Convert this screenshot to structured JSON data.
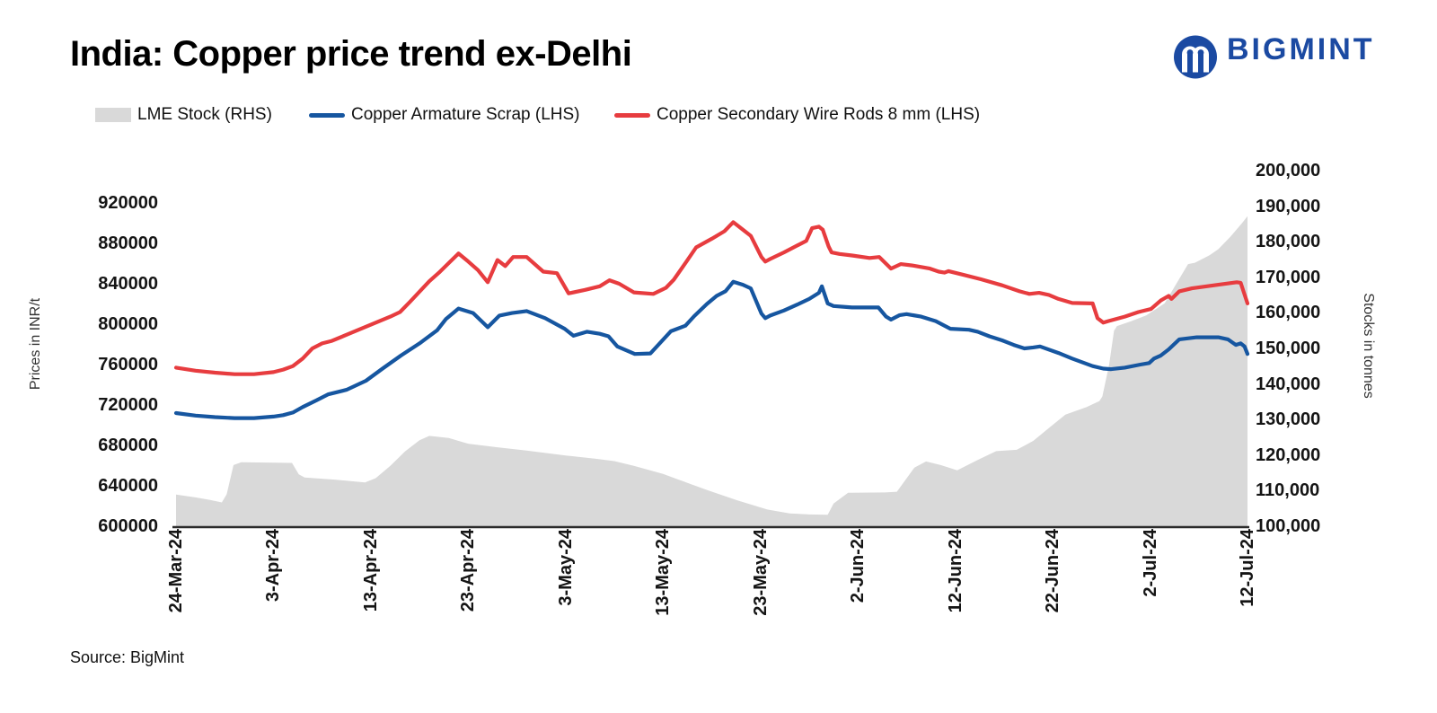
{
  "title": "India: Copper price trend ex-Delhi",
  "logo": {
    "text": "BIGMINT",
    "color": "#1b4aa2"
  },
  "source": "Source: BigMint",
  "colors": {
    "red": "#e73c3f",
    "blue": "#1656a0",
    "gray_area": "#d9d9d9",
    "axis_line": "#2b2b2b"
  },
  "legend": [
    {
      "label": "LME Stock (RHS)",
      "swatch": "area",
      "color": "#d9d9d9"
    },
    {
      "label": "Copper Armature Scrap (LHS)",
      "swatch": "line",
      "color": "#1656a0"
    },
    {
      "label": "Copper Secondary Wire Rods 8 mm (LHS)",
      "swatch": "line",
      "color": "#e73c3f"
    }
  ],
  "chart_data": {
    "type": "line",
    "title": "India: Copper price trend ex-Delhi",
    "x_axis": {
      "unit": "date",
      "tick_labels": [
        "24-Mar-24",
        "3-Apr-24",
        "13-Apr-24",
        "23-Apr-24",
        "3-May-24",
        "13-May-24",
        "23-May-24",
        "2-Jun-24",
        "12-Jun-24",
        "22-Jun-24",
        "2-Jul-24",
        "12-Jul-24"
      ],
      "tick_days": [
        0,
        10,
        20,
        30,
        40,
        50,
        60,
        70,
        80,
        90,
        100,
        110
      ],
      "range_days": [
        0,
        110
      ]
    },
    "y_left": {
      "label": "Prices in INR/t",
      "min": 600000,
      "max": 920000,
      "step": 40000,
      "grid": false
    },
    "y_right": {
      "label": "Stocks in tonnes",
      "min": 100000,
      "max": 200000,
      "step": 10000,
      "grid": false
    },
    "legend_position": "top",
    "series": [
      {
        "name": "LME Stock (RHS)",
        "axis": "right",
        "style": "area",
        "color": "#d9d9d9",
        "points": [
          [
            0,
            108900
          ],
          [
            2,
            108100
          ],
          [
            3.5,
            107400
          ],
          [
            4.7,
            106700
          ],
          [
            5.2,
            109000
          ],
          [
            5.9,
            117200
          ],
          [
            6.7,
            118000
          ],
          [
            11.9,
            117800
          ],
          [
            12.6,
            114600
          ],
          [
            13.2,
            113700
          ],
          [
            16.3,
            113100
          ],
          [
            19.4,
            112300
          ],
          [
            20.5,
            113500
          ],
          [
            22,
            117000
          ],
          [
            23.5,
            121000
          ],
          [
            25,
            124200
          ],
          [
            26,
            125400
          ],
          [
            28,
            124800
          ],
          [
            30,
            123200
          ],
          [
            33,
            122200
          ],
          [
            36,
            121300
          ],
          [
            40,
            119900
          ],
          [
            43,
            119000
          ],
          [
            45,
            118300
          ],
          [
            47,
            117000
          ],
          [
            48,
            116200
          ],
          [
            50,
            114700
          ],
          [
            51.5,
            113200
          ],
          [
            54.5,
            110200
          ],
          [
            57.6,
            107300
          ],
          [
            60.7,
            104700
          ],
          [
            63,
            103600
          ],
          [
            65,
            103300
          ],
          [
            66.9,
            103200
          ],
          [
            67.5,
            106400
          ],
          [
            69,
            109400
          ],
          [
            72.8,
            109500
          ],
          [
            74,
            109700
          ],
          [
            75.8,
            116500
          ],
          [
            77,
            118200
          ],
          [
            78.5,
            117200
          ],
          [
            80.2,
            115700
          ],
          [
            82.2,
            118500
          ],
          [
            84.2,
            121100
          ],
          [
            86.3,
            121500
          ],
          [
            88,
            124000
          ],
          [
            89.7,
            127800
          ],
          [
            91.3,
            131400
          ],
          [
            93.5,
            133500
          ],
          [
            94.8,
            135200
          ],
          [
            95.1,
            136500
          ],
          [
            95.8,
            145500
          ],
          [
            96.3,
            155000
          ],
          [
            96.6,
            156300
          ],
          [
            98,
            157600
          ],
          [
            99.6,
            159300
          ],
          [
            101.5,
            162700
          ],
          [
            103.9,
            173700
          ],
          [
            104.6,
            174100
          ],
          [
            106.1,
            176200
          ],
          [
            107,
            177900
          ],
          [
            108.2,
            181300
          ],
          [
            109.4,
            185100
          ],
          [
            110,
            187200
          ]
        ]
      },
      {
        "name": "Copper Armature Scrap (LHS)",
        "axis": "left",
        "style": "line",
        "color": "#1656a0",
        "points": [
          [
            0,
            712000
          ],
          [
            2,
            709500
          ],
          [
            4,
            708000
          ],
          [
            6,
            707000
          ],
          [
            8,
            707000
          ],
          [
            10,
            708500
          ],
          [
            11,
            710000
          ],
          [
            12,
            712500
          ],
          [
            13,
            718000
          ],
          [
            14.4,
            724500
          ],
          [
            15.6,
            730500
          ],
          [
            17.5,
            735000
          ],
          [
            19.5,
            744000
          ],
          [
            21.2,
            756000
          ],
          [
            23.1,
            769000
          ],
          [
            25,
            781000
          ],
          [
            26.8,
            794000
          ],
          [
            27.7,
            805000
          ],
          [
            29,
            815500
          ],
          [
            30.5,
            811000
          ],
          [
            32,
            797000
          ],
          [
            33.2,
            808500
          ],
          [
            34.5,
            811000
          ],
          [
            36,
            813000
          ],
          [
            37.9,
            806000
          ],
          [
            39.9,
            795500
          ],
          [
            40.8,
            788500
          ],
          [
            42.2,
            792500
          ],
          [
            43.5,
            790500
          ],
          [
            44.4,
            788000
          ],
          [
            45.3,
            778000
          ],
          [
            47.1,
            770500
          ],
          [
            48.7,
            771000
          ],
          [
            50.8,
            793000
          ],
          [
            52.3,
            798500
          ],
          [
            53.2,
            808000
          ],
          [
            54.5,
            820000
          ],
          [
            55.5,
            828000
          ],
          [
            56.4,
            832500
          ],
          [
            57.2,
            842000
          ],
          [
            58.2,
            839000
          ],
          [
            59,
            835500
          ],
          [
            60.1,
            810500
          ],
          [
            60.5,
            806000
          ],
          [
            61,
            808500
          ],
          [
            62.4,
            813500
          ],
          [
            63.8,
            819500
          ],
          [
            65,
            825000
          ],
          [
            66,
            831000
          ],
          [
            66.3,
            837500
          ],
          [
            66.9,
            820500
          ],
          [
            67.5,
            818000
          ],
          [
            69.4,
            816500
          ],
          [
            72.1,
            816500
          ],
          [
            72.9,
            807500
          ],
          [
            73.4,
            804500
          ],
          [
            74.3,
            809000
          ],
          [
            75,
            810000
          ],
          [
            76.5,
            807500
          ],
          [
            78,
            803000
          ],
          [
            78.9,
            798500
          ],
          [
            79.5,
            795500
          ],
          [
            81.4,
            794500
          ],
          [
            82.3,
            792500
          ],
          [
            83.5,
            788000
          ],
          [
            84.8,
            784000
          ],
          [
            86,
            779500
          ],
          [
            87.1,
            776000
          ],
          [
            88,
            777000
          ],
          [
            88.7,
            778000
          ],
          [
            90.6,
            771500
          ],
          [
            92,
            766000
          ],
          [
            94.1,
            758500
          ],
          [
            95.2,
            756000
          ],
          [
            96,
            755500
          ],
          [
            97.4,
            757000
          ],
          [
            99,
            760000
          ],
          [
            99.9,
            761500
          ],
          [
            100.4,
            766000
          ],
          [
            101.1,
            769000
          ],
          [
            101.9,
            775000
          ],
          [
            103,
            785000
          ],
          [
            104.8,
            787000
          ],
          [
            107,
            787000
          ],
          [
            108,
            785000
          ],
          [
            108.8,
            779500
          ],
          [
            109.3,
            781000
          ],
          [
            109.7,
            778000
          ],
          [
            110,
            770500
          ]
        ]
      },
      {
        "name": "Copper Secondary Wire Rods 8 mm (LHS)",
        "axis": "left",
        "style": "line",
        "color": "#e73c3f",
        "points": [
          [
            0,
            757000
          ],
          [
            2,
            754000
          ],
          [
            4,
            752000
          ],
          [
            6,
            750500
          ],
          [
            8,
            750500
          ],
          [
            10,
            752500
          ],
          [
            11,
            755000
          ],
          [
            12,
            758500
          ],
          [
            13,
            766000
          ],
          [
            14,
            776000
          ],
          [
            15,
            781000
          ],
          [
            16,
            783500
          ],
          [
            18,
            791500
          ],
          [
            20,
            799500
          ],
          [
            22,
            807500
          ],
          [
            23,
            812000
          ],
          [
            24,
            822000
          ],
          [
            26,
            842500
          ],
          [
            27,
            851000
          ],
          [
            28,
            860500
          ],
          [
            29,
            870000
          ],
          [
            30,
            862000
          ],
          [
            31,
            853500
          ],
          [
            32,
            841500
          ],
          [
            33,
            863500
          ],
          [
            33.8,
            857500
          ],
          [
            34.6,
            866500
          ],
          [
            36,
            866500
          ],
          [
            37.7,
            852000
          ],
          [
            39.1,
            850500
          ],
          [
            40.3,
            830500
          ],
          [
            42,
            834000
          ],
          [
            43.5,
            837500
          ],
          [
            44.5,
            843500
          ],
          [
            45.5,
            840000
          ],
          [
            47,
            831500
          ],
          [
            49,
            830000
          ],
          [
            50.3,
            836000
          ],
          [
            51.1,
            844000
          ],
          [
            52.4,
            862000
          ],
          [
            53.4,
            876000
          ],
          [
            55,
            884500
          ],
          [
            56.3,
            892000
          ],
          [
            57.2,
            901000
          ],
          [
            58.2,
            893500
          ],
          [
            59,
            887500
          ],
          [
            60.1,
            866500
          ],
          [
            60.5,
            862000
          ],
          [
            61,
            864500
          ],
          [
            62.4,
            871000
          ],
          [
            63.8,
            878000
          ],
          [
            64.7,
            882500
          ],
          [
            65.3,
            895000
          ],
          [
            66,
            896500
          ],
          [
            66.4,
            893500
          ],
          [
            67,
            877000
          ],
          [
            67.3,
            871000
          ],
          [
            68.1,
            869500
          ],
          [
            69.4,
            868000
          ],
          [
            71.2,
            865500
          ],
          [
            72.2,
            866500
          ],
          [
            73.4,
            855000
          ],
          [
            74.4,
            859500
          ],
          [
            75.7,
            858000
          ],
          [
            77.4,
            855000
          ],
          [
            78.3,
            852000
          ],
          [
            78.9,
            851000
          ],
          [
            79.3,
            852500
          ],
          [
            80.8,
            849000
          ],
          [
            82.6,
            844500
          ],
          [
            84.8,
            838500
          ],
          [
            86.6,
            832500
          ],
          [
            87.6,
            830000
          ],
          [
            88.6,
            831000
          ],
          [
            89.6,
            829000
          ],
          [
            90.6,
            825000
          ],
          [
            92,
            821000
          ],
          [
            94.1,
            820500
          ],
          [
            94.6,
            806000
          ],
          [
            95.2,
            801500
          ],
          [
            95.7,
            803000
          ],
          [
            97.4,
            807500
          ],
          [
            98.8,
            812000
          ],
          [
            100.1,
            815000
          ],
          [
            101.1,
            823500
          ],
          [
            101.9,
            828000
          ],
          [
            102.2,
            825000
          ],
          [
            103,
            832500
          ],
          [
            104.3,
            835500
          ],
          [
            107,
            839000
          ],
          [
            108.9,
            841500
          ],
          [
            109.3,
            841000
          ],
          [
            110,
            820500
          ]
        ]
      }
    ]
  }
}
